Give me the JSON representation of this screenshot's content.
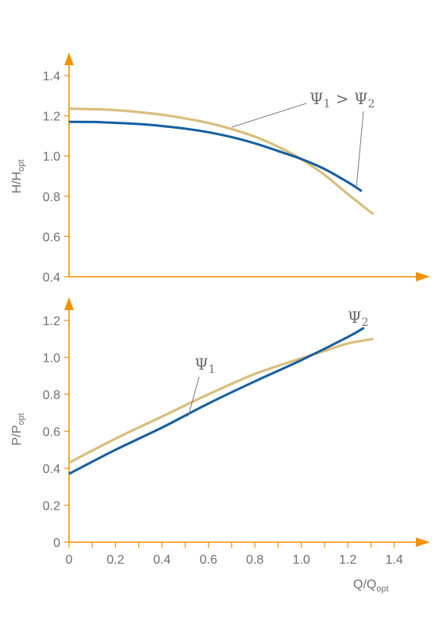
{
  "colors": {
    "axis": "#f39200",
    "psi1": "#d8bf7f",
    "psi2": "#155fa0",
    "text": "#6f6f6f",
    "leader": "#7a7a7a"
  },
  "chart_data": [
    {
      "type": "line",
      "ylabel": {
        "main": "H/H",
        "sub": "opt"
      },
      "xlim": [
        0,
        1.4
      ],
      "ylim": [
        0.4,
        1.4
      ],
      "yticks": [
        "0.4",
        "0.6",
        "0.8",
        "1.0",
        "1.2",
        "1.4"
      ],
      "annotation": {
        "sym1": "Ψ",
        "sub1": "1",
        "op": " > ",
        "sym2": "Ψ",
        "sub2": "2"
      },
      "series": [
        {
          "key": "psi1",
          "x": [
            0,
            0.1,
            0.2,
            0.3,
            0.4,
            0.5,
            0.6,
            0.7,
            0.8,
            0.9,
            1.0,
            1.1,
            1.2,
            1.31
          ],
          "y": [
            1.235,
            1.233,
            1.228,
            1.218,
            1.205,
            1.187,
            1.164,
            1.134,
            1.096,
            1.046,
            0.984,
            0.906,
            0.811,
            0.71
          ]
        },
        {
          "key": "psi2",
          "x": [
            0,
            0.1,
            0.2,
            0.3,
            0.4,
            0.5,
            0.6,
            0.7,
            0.8,
            0.9,
            1.0,
            1.1,
            1.2,
            1.26
          ],
          "y": [
            1.17,
            1.169,
            1.165,
            1.159,
            1.149,
            1.136,
            1.118,
            1.094,
            1.063,
            1.025,
            0.985,
            0.935,
            0.87,
            0.825
          ]
        }
      ]
    },
    {
      "type": "line",
      "ylabel": {
        "main": "P/P",
        "sub": "opt"
      },
      "xlabel": {
        "main": "Q/Q",
        "sub": "opt"
      },
      "xlim": [
        0,
        1.4
      ],
      "ylim": [
        0,
        1.2
      ],
      "xticks": [
        "0",
        "0.2",
        "0.4",
        "0.6",
        "0.8",
        "1.0",
        "1.2",
        "1.4"
      ],
      "yticks": [
        "0",
        "0.2",
        "0.4",
        "0.6",
        "0.8",
        "1.0",
        "1.2"
      ],
      "labels": {
        "psi1_sym": "Ψ",
        "psi1_sub": "1",
        "psi2_sym": "Ψ",
        "psi2_sub": "2"
      },
      "series": [
        {
          "key": "psi1",
          "x": [
            0,
            0.2,
            0.4,
            0.6,
            0.8,
            1.0,
            1.1,
            1.2,
            1.31
          ],
          "y": [
            0.43,
            0.56,
            0.68,
            0.8,
            0.91,
            0.995,
            1.035,
            1.075,
            1.1
          ]
        },
        {
          "key": "psi2",
          "x": [
            0,
            0.2,
            0.4,
            0.6,
            0.8,
            1.0,
            1.2,
            1.27
          ],
          "y": [
            0.37,
            0.5,
            0.62,
            0.75,
            0.87,
            0.985,
            1.11,
            1.16
          ]
        }
      ]
    }
  ]
}
